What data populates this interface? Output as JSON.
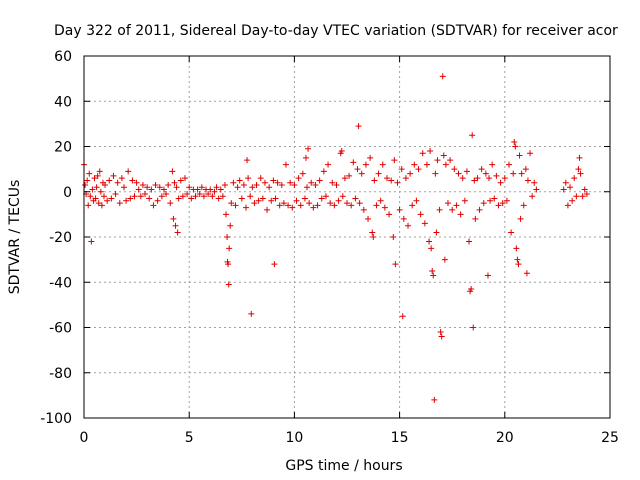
{
  "chart_data": {
    "type": "scatter",
    "title": "Day 322 of 2011, Sidereal Day-to-day VTEC variation (SDTVAR) for receiver acor",
    "xlabel": "GPS time / hours",
    "ylabel": "SDTVAR / TECUs",
    "xlim": [
      0,
      25
    ],
    "ylim": [
      -100,
      60
    ],
    "xticks": [
      0,
      5,
      10,
      15,
      20,
      25
    ],
    "xtick_labels": [
      "0",
      "5",
      "10",
      "15",
      "20",
      "25"
    ],
    "yticks": [
      60,
      40,
      20,
      0,
      -20,
      -40,
      -60,
      -80,
      -100
    ],
    "ytick_labels": [
      "60",
      "40",
      "20",
      "0",
      "-20",
      "-40",
      "-60",
      "-80",
      "-100"
    ],
    "grid": true,
    "marker": "+",
    "color": "#e00000",
    "series": [
      {
        "name": "SDTVAR",
        "points": [
          [
            0.0,
            12
          ],
          [
            0.05,
            3
          ],
          [
            0.1,
            -1
          ],
          [
            0.15,
            5
          ],
          [
            0.2,
            -6
          ],
          [
            0.25,
            8
          ],
          [
            0.3,
            -2
          ],
          [
            0.35,
            -22
          ],
          [
            0.4,
            1
          ],
          [
            0.45,
            -4
          ],
          [
            0.5,
            6
          ],
          [
            0.55,
            -3
          ],
          [
            0.6,
            2
          ],
          [
            0.65,
            7
          ],
          [
            0.7,
            -5
          ],
          [
            0.75,
            9
          ],
          [
            0.8,
            0
          ],
          [
            0.85,
            -6
          ],
          [
            0.9,
            4
          ],
          [
            0.95,
            -2
          ],
          [
            1.0,
            3
          ],
          [
            1.1,
            -4
          ],
          [
            1.2,
            5
          ],
          [
            1.3,
            -3
          ],
          [
            1.4,
            7
          ],
          [
            1.5,
            -1
          ],
          [
            1.6,
            4
          ],
          [
            1.7,
            -5
          ],
          [
            1.8,
            6
          ],
          [
            1.9,
            2
          ],
          [
            2.0,
            -4
          ],
          [
            2.1,
            9
          ],
          [
            2.2,
            -3
          ],
          [
            2.3,
            5
          ],
          [
            2.4,
            -2
          ],
          [
            2.5,
            4
          ],
          [
            2.6,
            1
          ],
          [
            2.7,
            -2
          ],
          [
            2.8,
            3
          ],
          [
            2.9,
            -1
          ],
          [
            3.0,
            2
          ],
          [
            3.1,
            -3
          ],
          [
            3.2,
            1
          ],
          [
            3.3,
            -6
          ],
          [
            3.4,
            3
          ],
          [
            3.5,
            -4
          ],
          [
            3.6,
            2
          ],
          [
            3.7,
            -2
          ],
          [
            3.8,
            1
          ],
          [
            3.9,
            -1
          ],
          [
            4.0,
            3
          ],
          [
            4.1,
            -5
          ],
          [
            4.2,
            9
          ],
          [
            4.25,
            -12
          ],
          [
            4.3,
            4
          ],
          [
            4.35,
            -15
          ],
          [
            4.4,
            2
          ],
          [
            4.45,
            -18
          ],
          [
            4.5,
            -3
          ],
          [
            4.6,
            5
          ],
          [
            4.7,
            -2
          ],
          [
            4.8,
            6
          ],
          [
            4.9,
            -1
          ],
          [
            5.0,
            2
          ],
          [
            5.1,
            -3
          ],
          [
            5.2,
            1
          ],
          [
            5.3,
            -2
          ],
          [
            5.4,
            1
          ],
          [
            5.5,
            -1
          ],
          [
            5.6,
            2
          ],
          [
            5.7,
            -2
          ],
          [
            5.8,
            1
          ],
          [
            5.9,
            -1
          ],
          [
            6.0,
            1
          ],
          [
            6.1,
            -2
          ],
          [
            6.2,
            0
          ],
          [
            6.3,
            2
          ],
          [
            6.4,
            -3
          ],
          [
            6.5,
            1
          ],
          [
            6.6,
            -2
          ],
          [
            6.7,
            3
          ],
          [
            6.75,
            -10
          ],
          [
            6.8,
            -20
          ],
          [
            6.82,
            -31
          ],
          [
            6.85,
            -32
          ],
          [
            6.88,
            -41
          ],
          [
            6.9,
            -25
          ],
          [
            6.95,
            -15
          ],
          [
            7.0,
            -5
          ],
          [
            7.1,
            4
          ],
          [
            7.2,
            -6
          ],
          [
            7.3,
            2
          ],
          [
            7.4,
            5
          ],
          [
            7.5,
            -3
          ],
          [
            7.6,
            3
          ],
          [
            7.7,
            -7
          ],
          [
            7.75,
            14
          ],
          [
            7.8,
            6
          ],
          [
            7.9,
            -2
          ],
          [
            7.95,
            -54
          ],
          [
            8.0,
            2
          ],
          [
            8.1,
            -5
          ],
          [
            8.2,
            3
          ],
          [
            8.3,
            -4
          ],
          [
            8.4,
            6
          ],
          [
            8.5,
            -3
          ],
          [
            8.6,
            4
          ],
          [
            8.7,
            -8
          ],
          [
            8.8,
            2
          ],
          [
            8.9,
            -4
          ],
          [
            9.0,
            5
          ],
          [
            9.05,
            -32
          ],
          [
            9.1,
            -3
          ],
          [
            9.2,
            4
          ],
          [
            9.3,
            -6
          ],
          [
            9.4,
            3
          ],
          [
            9.5,
            -5
          ],
          [
            9.6,
            12
          ],
          [
            9.7,
            -6
          ],
          [
            9.8,
            4
          ],
          [
            9.9,
            -7
          ],
          [
            10.0,
            3
          ],
          [
            10.1,
            -4
          ],
          [
            10.2,
            6
          ],
          [
            10.3,
            -6
          ],
          [
            10.4,
            8
          ],
          [
            10.5,
            -3
          ],
          [
            10.55,
            15
          ],
          [
            10.6,
            2
          ],
          [
            10.65,
            19
          ],
          [
            10.7,
            -5
          ],
          [
            10.8,
            4
          ],
          [
            10.9,
            -7
          ],
          [
            11.0,
            3
          ],
          [
            11.1,
            -6
          ],
          [
            11.2,
            5
          ],
          [
            11.3,
            -3
          ],
          [
            11.4,
            9
          ],
          [
            11.5,
            -2
          ],
          [
            11.6,
            12
          ],
          [
            11.7,
            -5
          ],
          [
            11.8,
            4
          ],
          [
            11.9,
            -6
          ],
          [
            12.0,
            3
          ],
          [
            12.1,
            -4
          ],
          [
            12.2,
            17
          ],
          [
            12.25,
            18
          ],
          [
            12.3,
            -2
          ],
          [
            12.4,
            6
          ],
          [
            12.5,
            -5
          ],
          [
            12.6,
            7
          ],
          [
            12.7,
            -6
          ],
          [
            12.8,
            13
          ],
          [
            12.9,
            -3
          ],
          [
            13.0,
            10
          ],
          [
            13.05,
            29
          ],
          [
            13.1,
            -5
          ],
          [
            13.2,
            8
          ],
          [
            13.3,
            -8
          ],
          [
            13.4,
            12
          ],
          [
            13.5,
            -12
          ],
          [
            13.6,
            15
          ],
          [
            13.7,
            -18
          ],
          [
            13.75,
            -20
          ],
          [
            13.8,
            5
          ],
          [
            13.9,
            -6
          ],
          [
            14.0,
            8
          ],
          [
            14.1,
            -4
          ],
          [
            14.2,
            12
          ],
          [
            14.3,
            -7
          ],
          [
            14.4,
            6
          ],
          [
            14.5,
            -10
          ],
          [
            14.6,
            5
          ],
          [
            14.7,
            -20
          ],
          [
            14.75,
            14
          ],
          [
            14.8,
            -32
          ],
          [
            14.9,
            4
          ],
          [
            15.0,
            -8
          ],
          [
            15.1,
            10
          ],
          [
            15.15,
            -55
          ],
          [
            15.2,
            -12
          ],
          [
            15.3,
            6
          ],
          [
            15.4,
            -15
          ],
          [
            15.5,
            8
          ],
          [
            15.6,
            -6
          ],
          [
            15.7,
            12
          ],
          [
            15.8,
            -4
          ],
          [
            15.9,
            10
          ],
          [
            16.0,
            -10
          ],
          [
            16.1,
            17
          ],
          [
            16.2,
            -14
          ],
          [
            16.3,
            12
          ],
          [
            16.4,
            -22
          ],
          [
            16.45,
            18
          ],
          [
            16.5,
            -25
          ],
          [
            16.55,
            -35
          ],
          [
            16.6,
            -37
          ],
          [
            16.65,
            -92
          ],
          [
            16.7,
            8
          ],
          [
            16.75,
            -18
          ],
          [
            16.8,
            14
          ],
          [
            16.9,
            -8
          ],
          [
            16.95,
            -62
          ],
          [
            17.0,
            -64
          ],
          [
            17.05,
            51
          ],
          [
            17.1,
            16
          ],
          [
            17.15,
            -30
          ],
          [
            17.2,
            12
          ],
          [
            17.3,
            -5
          ],
          [
            17.4,
            14
          ],
          [
            17.5,
            -8
          ],
          [
            17.6,
            10
          ],
          [
            17.7,
            -6
          ],
          [
            17.8,
            8
          ],
          [
            17.9,
            -10
          ],
          [
            18.0,
            6
          ],
          [
            18.1,
            -4
          ],
          [
            18.2,
            9
          ],
          [
            18.3,
            -22
          ],
          [
            18.35,
            -44
          ],
          [
            18.4,
            -43
          ],
          [
            18.45,
            25
          ],
          [
            18.5,
            -60
          ],
          [
            18.55,
            5
          ],
          [
            18.6,
            -12
          ],
          [
            18.7,
            6
          ],
          [
            18.8,
            -8
          ],
          [
            18.9,
            10
          ],
          [
            19.0,
            -5
          ],
          [
            19.1,
            8
          ],
          [
            19.2,
            -37
          ],
          [
            19.25,
            6
          ],
          [
            19.3,
            -4
          ],
          [
            19.4,
            12
          ],
          [
            19.5,
            -3
          ],
          [
            19.6,
            7
          ],
          [
            19.7,
            -6
          ],
          [
            19.8,
            4
          ],
          [
            19.9,
            -5
          ],
          [
            20.0,
            6
          ],
          [
            20.1,
            -4
          ],
          [
            20.2,
            12
          ],
          [
            20.3,
            -18
          ],
          [
            20.4,
            8
          ],
          [
            20.45,
            22
          ],
          [
            20.5,
            20
          ],
          [
            20.55,
            -25
          ],
          [
            20.6,
            -30
          ],
          [
            20.65,
            -32
          ],
          [
            20.7,
            16
          ],
          [
            20.75,
            -12
          ],
          [
            20.8,
            8
          ],
          [
            20.9,
            -6
          ],
          [
            21.0,
            10
          ],
          [
            21.05,
            -36
          ],
          [
            21.1,
            5
          ],
          [
            21.2,
            17
          ],
          [
            21.3,
            -2
          ],
          [
            21.4,
            4
          ],
          [
            21.5,
            1
          ],
          [
            22.8,
            1
          ],
          [
            22.9,
            4
          ],
          [
            23.0,
            -6
          ],
          [
            23.1,
            2
          ],
          [
            23.2,
            -4
          ],
          [
            23.3,
            6
          ],
          [
            23.4,
            -2
          ],
          [
            23.5,
            10
          ],
          [
            23.55,
            15
          ],
          [
            23.6,
            8
          ],
          [
            23.7,
            -2
          ],
          [
            23.8,
            1
          ],
          [
            23.9,
            -1
          ]
        ]
      }
    ]
  }
}
